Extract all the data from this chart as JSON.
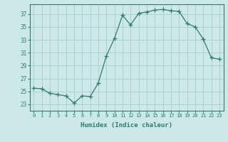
{
  "x": [
    0,
    1,
    2,
    3,
    4,
    5,
    6,
    7,
    8,
    9,
    10,
    11,
    12,
    13,
    14,
    15,
    16,
    17,
    18,
    19,
    20,
    21,
    22,
    23
  ],
  "y": [
    25.5,
    25.4,
    24.7,
    24.5,
    24.3,
    23.2,
    24.3,
    24.2,
    26.3,
    30.5,
    33.2,
    36.8,
    35.3,
    37.1,
    37.3,
    37.6,
    37.7,
    37.5,
    37.4,
    35.5,
    35.0,
    33.1,
    30.2,
    30.0
  ],
  "line_color": "#2e7d6e",
  "marker": "+",
  "marker_size": 4,
  "bg_color": "#cce8e8",
  "grid_color": "#aacccc",
  "xlabel": "Humidex (Indice chaleur)",
  "yticks": [
    23,
    25,
    27,
    29,
    31,
    33,
    35,
    37
  ],
  "xticks": [
    0,
    1,
    2,
    3,
    4,
    5,
    6,
    7,
    8,
    9,
    10,
    11,
    12,
    13,
    14,
    15,
    16,
    17,
    18,
    19,
    20,
    21,
    22,
    23
  ],
  "ylim": [
    22.0,
    38.5
  ],
  "xlim": [
    -0.5,
    23.5
  ],
  "tick_color": "#2e7d6e",
  "label_color": "#2e7d6e"
}
